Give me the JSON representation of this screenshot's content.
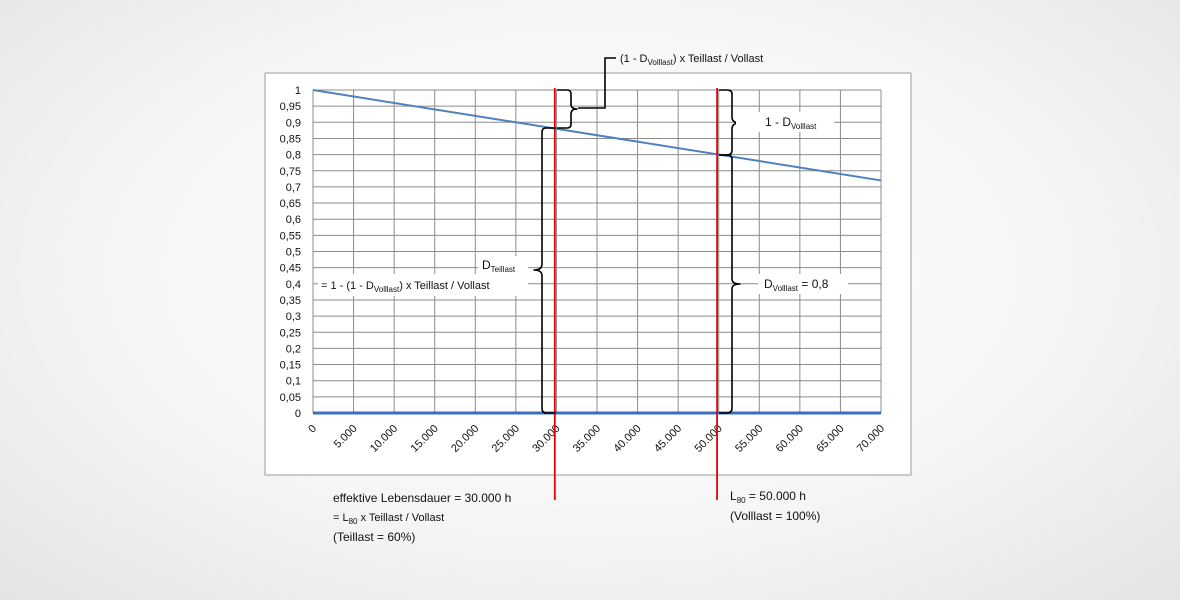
{
  "chart_data": {
    "type": "line",
    "x_ticks": [
      "0",
      "5.000",
      "10.000",
      "15.000",
      "20.000",
      "25.000",
      "30.000",
      "35.000",
      "40.000",
      "45.000",
      "50.000",
      "55.000",
      "60.000",
      "65.000",
      "70.000"
    ],
    "y_ticks": [
      "0",
      "0,05",
      "0,1",
      "0,15",
      "0,2",
      "0,25",
      "0,3",
      "0,35",
      "0,4",
      "0,45",
      "0,5",
      "0,55",
      "0,6",
      "0,65",
      "0,7",
      "0,75",
      "0,8",
      "0,85",
      "0,9",
      "0,95",
      "1"
    ],
    "xlim": [
      0,
      70000
    ],
    "ylim": [
      0,
      1
    ],
    "grid": true,
    "series": [
      {
        "x": [
          0,
          70000
        ],
        "y": [
          1,
          0.72
        ],
        "color": "#4f81bd"
      },
      {
        "x": [
          0,
          70000
        ],
        "y": [
          0,
          0
        ],
        "color": "#3a6fc0"
      }
    ],
    "vlines": [
      {
        "x": 29800,
        "color": "#e8000b"
      },
      {
        "x": 49800,
        "color": "#e8000b"
      }
    ]
  },
  "annotations": {
    "top": {
      "pre": "(1 - D",
      "sub": "Volllast",
      "post": ") x Teillast / Vollast"
    },
    "right_top": {
      "pre": "1 - D",
      "sub": "Volllast"
    },
    "d_teillast": {
      "pre": "D",
      "sub": "Teillast"
    },
    "formula": {
      "pre": "= 1 - (1 - D",
      "sub": "Volllast",
      "post": ") x Teillast / Vollast"
    },
    "d_volllast": {
      "pre": "D",
      "sub": "Volllast",
      "post": " = 0,8"
    },
    "left_caption": {
      "line1": "effektive Lebensdauer = 30.000  h",
      "line2_pre": "= L",
      "line2_sub": "80",
      "line2_post": " x Teillast / Vollast",
      "line3": "(Teillast = 60%)"
    },
    "right_caption": {
      "line1_pre": "L",
      "line1_sub": "80",
      "line1_post": " = 50.000  h",
      "line2": "(Volllast = 100%)"
    }
  }
}
